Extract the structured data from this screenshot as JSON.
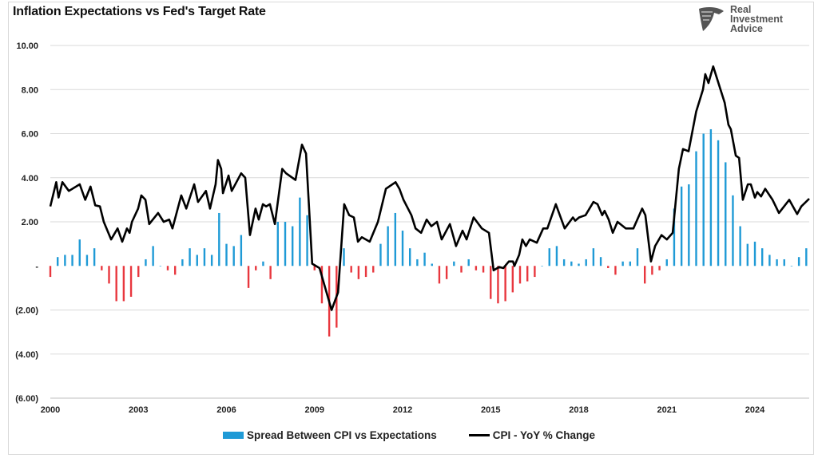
{
  "chart_data": {
    "type": "bar+line",
    "title": "Inflation Expectations vs Fed's Target Rate",
    "xlabel": "",
    "ylabel": "",
    "xlim": [
      2000,
      2025.85
    ],
    "ylim": [
      -6,
      10
    ],
    "x_ticks": [
      "2000",
      "2003",
      "2006",
      "2009",
      "2012",
      "2015",
      "2018",
      "2021",
      "2024"
    ],
    "x_tick_values": [
      2000,
      2003,
      2006,
      2009,
      2012,
      2015,
      2018,
      2021,
      2024
    ],
    "y_ticks": [
      "(6.00)",
      "(4.00)",
      "(2.00)",
      "-",
      "2.00",
      "4.00",
      "6.00",
      "8.00",
      "10.00"
    ],
    "y_tick_values": [
      -6,
      -4,
      -2,
      0,
      2,
      4,
      6,
      8,
      10
    ],
    "grid": true,
    "legend_placement": "bottom",
    "colors": {
      "positive_bar": "#1f9ad6",
      "negative_bar": "#e8373e",
      "line": "#000000"
    },
    "series": [
      {
        "name": "Spread Between CPI vs Expectations",
        "type": "bar",
        "x_start": 2000,
        "x_step": 0.25,
        "values": [
          -0.5,
          0.4,
          0.5,
          0.5,
          1.2,
          0.5,
          0.8,
          -0.2,
          -0.8,
          -1.6,
          -1.6,
          -1.4,
          -0.5,
          0.3,
          0.9,
          0.0,
          -0.2,
          -0.4,
          0.3,
          0.8,
          0.5,
          0.8,
          0.5,
          2.4,
          1.0,
          0.9,
          1.4,
          -1.0,
          -0.2,
          0.2,
          -0.6,
          2.0,
          2.0,
          1.8,
          3.1,
          2.3,
          -0.2,
          -1.7,
          -3.2,
          -2.8,
          0.8,
          -0.3,
          -0.6,
          -0.5,
          -0.3,
          1.0,
          1.8,
          2.4,
          1.6,
          0.8,
          0.3,
          0.6,
          0.1,
          -0.8,
          -0.6,
          0.2,
          -0.3,
          0.3,
          -0.2,
          -0.3,
          -1.5,
          -1.7,
          -1.6,
          -1.2,
          -0.8,
          -0.7,
          -0.5,
          0.0,
          0.8,
          0.9,
          0.3,
          0.2,
          0.1,
          0.3,
          0.8,
          0.4,
          -0.1,
          -0.4,
          0.2,
          0.2,
          0.8,
          -0.8,
          -0.4,
          -0.2,
          0.3,
          2.6,
          3.6,
          3.7,
          5.2,
          6.0,
          6.2,
          5.7,
          4.7,
          3.2,
          1.8,
          1.0,
          1.1,
          0.8,
          0.5,
          0.3,
          0.3,
          0.0,
          0.4,
          0.8
        ]
      },
      {
        "name": "CPI - YoY % Change",
        "type": "line",
        "points": [
          [
            2000,
            2.7
          ],
          [
            2000.2,
            3.8
          ],
          [
            2000.28,
            3.1
          ],
          [
            2000.41,
            3.8
          ],
          [
            2000.63,
            3.4
          ],
          [
            2001.0,
            3.7
          ],
          [
            2001.19,
            3.0
          ],
          [
            2001.37,
            3.6
          ],
          [
            2001.53,
            2.75
          ],
          [
            2001.69,
            2.7
          ],
          [
            2001.82,
            2.0
          ],
          [
            2002.07,
            1.2
          ],
          [
            2002.29,
            1.7
          ],
          [
            2002.45,
            1.1
          ],
          [
            2002.61,
            1.7
          ],
          [
            2002.7,
            1.5
          ],
          [
            2002.78,
            2.0
          ],
          [
            2002.99,
            2.6
          ],
          [
            2003.1,
            3.2
          ],
          [
            2003.24,
            3.0
          ],
          [
            2003.37,
            1.9
          ],
          [
            2003.67,
            2.4
          ],
          [
            2003.86,
            2.0
          ],
          [
            2004.05,
            2.1
          ],
          [
            2004.16,
            1.7
          ],
          [
            2004.46,
            3.2
          ],
          [
            2004.63,
            2.6
          ],
          [
            2004.9,
            3.7
          ],
          [
            2005.03,
            2.9
          ],
          [
            2005.3,
            3.4
          ],
          [
            2005.44,
            2.6
          ],
          [
            2005.63,
            3.7
          ],
          [
            2005.71,
            4.8
          ],
          [
            2005.82,
            4.4
          ],
          [
            2005.88,
            3.3
          ],
          [
            2006.07,
            4.1
          ],
          [
            2006.18,
            3.4
          ],
          [
            2006.5,
            4.2
          ],
          [
            2006.64,
            4.0
          ],
          [
            2006.8,
            1.4
          ],
          [
            2006.99,
            2.6
          ],
          [
            2007.1,
            2.1
          ],
          [
            2007.24,
            2.8
          ],
          [
            2007.35,
            2.7
          ],
          [
            2007.48,
            2.8
          ],
          [
            2007.65,
            1.9
          ],
          [
            2007.9,
            4.4
          ],
          [
            2008.03,
            4.2
          ],
          [
            2008.35,
            3.9
          ],
          [
            2008.57,
            5.5
          ],
          [
            2008.71,
            5.1
          ],
          [
            2008.92,
            0.1
          ],
          [
            2009.17,
            -0.1
          ],
          [
            2009.58,
            -2.0
          ],
          [
            2009.8,
            -1.2
          ],
          [
            2010.01,
            2.8
          ],
          [
            2010.18,
            2.3
          ],
          [
            2010.34,
            2.2
          ],
          [
            2010.48,
            1.1
          ],
          [
            2010.61,
            1.3
          ],
          [
            2010.88,
            1.1
          ],
          [
            2011.16,
            2.0
          ],
          [
            2011.43,
            3.5
          ],
          [
            2011.76,
            3.8
          ],
          [
            2011.89,
            3.5
          ],
          [
            2012.03,
            3.0
          ],
          [
            2012.3,
            2.3
          ],
          [
            2012.44,
            1.7
          ],
          [
            2012.63,
            1.5
          ],
          [
            2012.82,
            2.1
          ],
          [
            2012.98,
            1.8
          ],
          [
            2013.17,
            2.0
          ],
          [
            2013.33,
            1.2
          ],
          [
            2013.61,
            1.9
          ],
          [
            2013.82,
            0.9
          ],
          [
            2014.04,
            1.6
          ],
          [
            2014.18,
            1.2
          ],
          [
            2014.42,
            2.2
          ],
          [
            2014.7,
            1.7
          ],
          [
            2014.94,
            1.5
          ],
          [
            2015.1,
            -0.2
          ],
          [
            2015.29,
            -0.05
          ],
          [
            2015.43,
            -0.1
          ],
          [
            2015.62,
            0.2
          ],
          [
            2015.76,
            0.2
          ],
          [
            2015.81,
            0.0
          ],
          [
            2015.97,
            0.5
          ],
          [
            2016.08,
            1.2
          ],
          [
            2016.2,
            0.9
          ],
          [
            2016.33,
            1.2
          ],
          [
            2016.57,
            1.05
          ],
          [
            2016.79,
            1.7
          ],
          [
            2016.93,
            1.7
          ],
          [
            2017.22,
            2.8
          ],
          [
            2017.52,
            1.7
          ],
          [
            2017.8,
            2.2
          ],
          [
            2017.88,
            2.05
          ],
          [
            2018.01,
            2.2
          ],
          [
            2018.23,
            2.3
          ],
          [
            2018.5,
            2.9
          ],
          [
            2018.64,
            2.8
          ],
          [
            2018.8,
            2.3
          ],
          [
            2018.88,
            2.5
          ],
          [
            2019.02,
            2.1
          ],
          [
            2019.16,
            1.5
          ],
          [
            2019.32,
            2.0
          ],
          [
            2019.6,
            1.7
          ],
          [
            2019.86,
            1.7
          ],
          [
            2020.16,
            2.6
          ],
          [
            2020.27,
            2.3
          ],
          [
            2020.46,
            0.2
          ],
          [
            2020.6,
            0.9
          ],
          [
            2020.82,
            1.4
          ],
          [
            2021.0,
            1.2
          ],
          [
            2021.2,
            1.5
          ],
          [
            2021.41,
            4.4
          ],
          [
            2021.55,
            5.3
          ],
          [
            2021.74,
            5.2
          ],
          [
            2022.0,
            7.0
          ],
          [
            2022.23,
            8.0
          ],
          [
            2022.31,
            8.7
          ],
          [
            2022.42,
            8.3
          ],
          [
            2022.58,
            9.05
          ],
          [
            2022.78,
            8.2
          ],
          [
            2022.97,
            7.4
          ],
          [
            2023.1,
            6.4
          ],
          [
            2023.18,
            6.2
          ],
          [
            2023.35,
            5.0
          ],
          [
            2023.46,
            4.9
          ],
          [
            2023.59,
            3.0
          ],
          [
            2023.76,
            3.7
          ],
          [
            2023.86,
            3.7
          ],
          [
            2024.0,
            3.1
          ],
          [
            2024.08,
            3.35
          ],
          [
            2024.21,
            3.15
          ],
          [
            2024.35,
            3.5
          ],
          [
            2024.6,
            3.0
          ],
          [
            2024.82,
            2.4
          ],
          [
            2025.17,
            3.0
          ],
          [
            2025.44,
            2.35
          ],
          [
            2025.58,
            2.7
          ],
          [
            2025.85,
            3.05
          ]
        ]
      }
    ]
  },
  "logo": {
    "text": "Real Investment Advice",
    "lines": [
      "Real",
      "Investment",
      "Advice"
    ],
    "icon": "eagle-shield-icon"
  }
}
